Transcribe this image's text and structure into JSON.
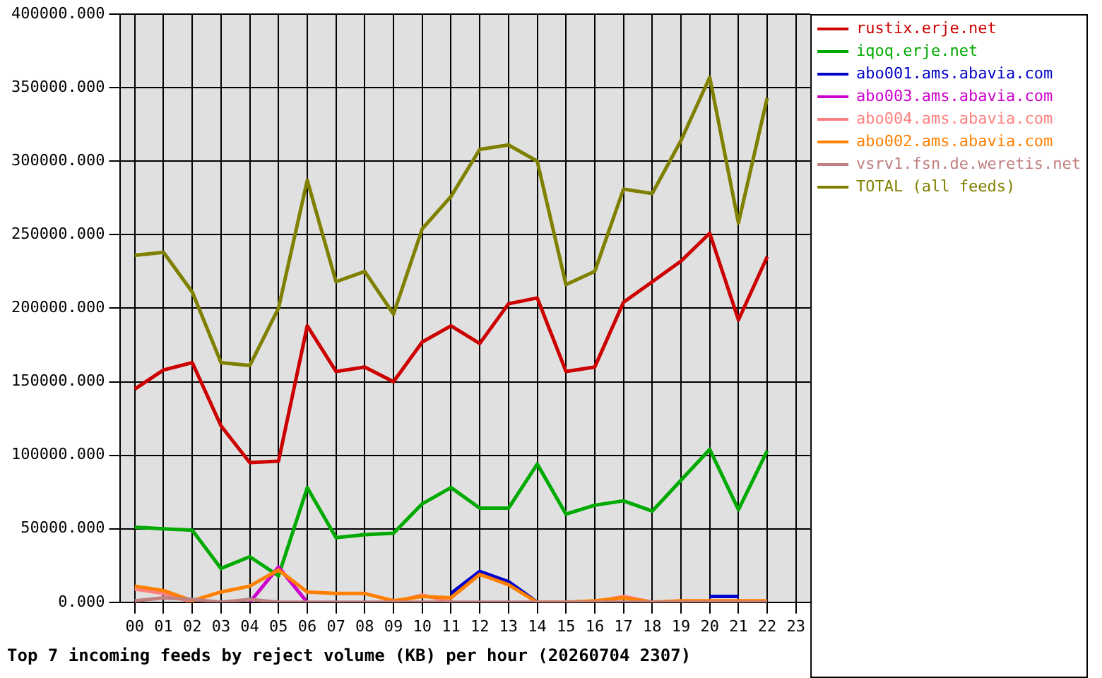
{
  "chart_data": {
    "type": "line",
    "title": "Top 7 incoming feeds by reject volume (KB) per hour (20260704 2307)",
    "categories": [
      "00",
      "01",
      "02",
      "03",
      "04",
      "05",
      "06",
      "07",
      "08",
      "09",
      "10",
      "11",
      "12",
      "13",
      "14",
      "15",
      "16",
      "17",
      "18",
      "19",
      "20",
      "21",
      "22",
      "23"
    ],
    "series": [
      {
        "name": "rustix.erje.net",
        "color": "#cc0000",
        "values": [
          145000,
          158000,
          163000,
          120000,
          95000,
          96000,
          188000,
          157000,
          160000,
          150000,
          177000,
          188000,
          176000,
          203000,
          207000,
          157000,
          160000,
          204000,
          218000,
          232000,
          251000,
          192000,
          235000,
          null
        ]
      },
      {
        "name": "iqoq.erje.net",
        "color": "#00aa00",
        "values": [
          51000,
          50000,
          49000,
          23000,
          31000,
          18000,
          78000,
          44000,
          46000,
          47000,
          67000,
          78000,
          64000,
          64000,
          94000,
          60000,
          66000,
          69000,
          62000,
          83000,
          104000,
          63000,
          103000,
          null
        ]
      },
      {
        "name": "abo001.ams.abavia.com",
        "color": "#0000cc",
        "values": [
          null,
          null,
          null,
          null,
          null,
          null,
          null,
          null,
          null,
          null,
          null,
          6000,
          21000,
          14000,
          0,
          null,
          null,
          null,
          null,
          null,
          4000,
          4000,
          null,
          null
        ]
      },
      {
        "name": "abo003.ams.abavia.com",
        "color": "#cc00cc",
        "values": [
          null,
          null,
          null,
          null,
          0,
          24000,
          0,
          null,
          null,
          null,
          null,
          null,
          null,
          null,
          null,
          null,
          null,
          null,
          null,
          null,
          null,
          null,
          null,
          null
        ]
      },
      {
        "name": "abo004.ams.abavia.com",
        "color": "#ff8080",
        "values": [
          9000,
          6000,
          0,
          null,
          null,
          null,
          null,
          null,
          null,
          0,
          5000,
          0,
          null,
          null,
          null,
          null,
          0,
          4000,
          0,
          null,
          null,
          null,
          null,
          null
        ]
      },
      {
        "name": "abo002.ams.abavia.com",
        "color": "#ff8000",
        "values": [
          11000,
          8000,
          1000,
          7000,
          11000,
          22000,
          7000,
          6000,
          6000,
          1000,
          4000,
          3000,
          19000,
          12000,
          0,
          0,
          1000,
          3000,
          0,
          1000,
          1000,
          1000,
          1000,
          null
        ]
      },
      {
        "name": "vsrv1.fsn.de.weretis.net",
        "color": "#c08080",
        "values": [
          1000,
          3000,
          2000,
          0,
          2000,
          0,
          0,
          0,
          0,
          0,
          0,
          0,
          0,
          0,
          0,
          0,
          0,
          0,
          0,
          0,
          0,
          0,
          0,
          null
        ]
      },
      {
        "name": "TOTAL (all feeds)",
        "color": "#808000",
        "values": [
          236000,
          238000,
          211000,
          163000,
          161000,
          200000,
          287000,
          218000,
          225000,
          196000,
          254000,
          276000,
          308000,
          311000,
          300000,
          216000,
          225000,
          281000,
          278000,
          314000,
          357000,
          258000,
          343000,
          null
        ]
      }
    ],
    "ylim": [
      0,
      400000
    ],
    "yticks": [
      {
        "value": 0,
        "label": "0.000"
      },
      {
        "value": 50000,
        "label": "50000.000"
      },
      {
        "value": 100000,
        "label": "100000.000"
      },
      {
        "value": 150000,
        "label": "150000.000"
      },
      {
        "value": 200000,
        "label": "200000.000"
      },
      {
        "value": 250000,
        "label": "250000.000"
      },
      {
        "value": 300000,
        "label": "300000.000"
      },
      {
        "value": 350000,
        "label": "350000.000"
      },
      {
        "value": 400000,
        "label": "400000.000"
      }
    ],
    "grid": true,
    "legend": "top right",
    "marker": "none",
    "line_style": "solid"
  }
}
